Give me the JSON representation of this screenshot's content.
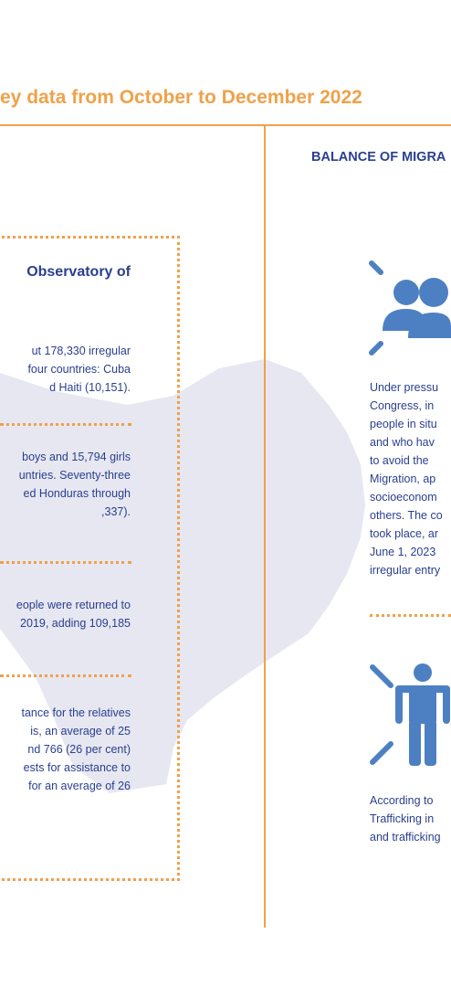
{
  "header": {
    "title": "ey data from October to December 2022"
  },
  "left": {
    "heading_line1": "Observatory of",
    "blocks": [
      {
        "lines": [
          "ut 178,330 irregular",
          "four countries: Cuba",
          "d Haiti (10,151)."
        ]
      },
      {
        "lines": [
          "boys and 15,794 girls",
          "untries. Seventy-three",
          "ed Honduras through",
          ",337)."
        ]
      },
      {
        "lines": [
          "eople were returned to",
          "2019, adding 109,185"
        ]
      },
      {
        "lines": [
          "tance for the relatives",
          "is, an average of 25",
          "nd 766 (26 per cent)",
          "ests for assistance to",
          "for an average of 26"
        ]
      }
    ]
  },
  "right": {
    "heading": "BALANCE OF MIGRA",
    "block1_lines": [
      "Under pressu",
      "Congress, in",
      "people in situ",
      "and who hav",
      "to avoid the",
      "Migration, ap",
      "socioeconom",
      "others. The co",
      "took place, ar",
      "June 1, 2023",
      "irregular entry"
    ],
    "block2_lines": [
      "According to",
      "Trafficking in",
      "and trafficking"
    ]
  },
  "icons": [
    "people-group-icon",
    "person-icon"
  ],
  "colors": {
    "accent": "#f0a14a",
    "text": "#2a3f8f",
    "icon": "#4d80c2",
    "map": "#e6e7f1"
  }
}
